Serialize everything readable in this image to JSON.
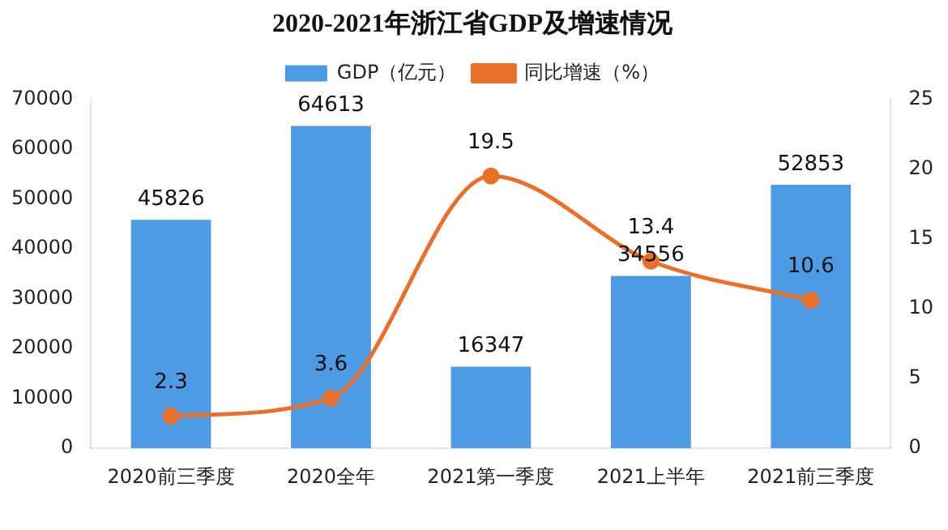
{
  "chart_data": {
    "type": "bar",
    "title": "2020-2021年浙江省GDP及增速情况",
    "categories": [
      "2020前三季度",
      "2020全年",
      "2021第一季度",
      "2021上半年",
      "2021前三季度"
    ],
    "series": [
      {
        "name": "GDP（亿元）",
        "color": "#4f9be3",
        "values": [
          45826,
          64613,
          16347,
          34556,
          52853
        ]
      },
      {
        "name": "同比增速（%）",
        "type": "line",
        "axis": "y2",
        "color": "#e8702a",
        "values": [
          2.3,
          3.6,
          19.5,
          13.4,
          10.6
        ]
      }
    ],
    "ylim": [
      0,
      70000
    ],
    "yticks": [
      0,
      10000,
      20000,
      30000,
      40000,
      50000,
      60000,
      70000
    ],
    "y2lim": [
      0,
      25
    ],
    "y2ticks": [
      0,
      5,
      10,
      15,
      20,
      25
    ],
    "grid": false,
    "legend": "top",
    "marker": "circle",
    "data_labels": true
  }
}
